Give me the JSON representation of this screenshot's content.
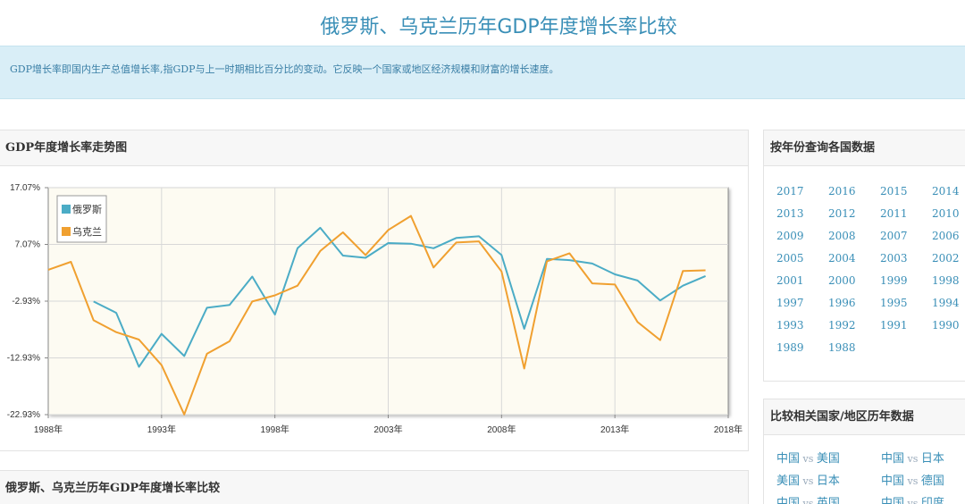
{
  "page": {
    "title": "俄罗斯、乌克兰历年GDP年度增长率比较",
    "description": "GDP增长率即国内生产总值增长率,指GDP与上一时期相比百分比的变动。它反映一个国家或地区经济规模和财富的增长速度。"
  },
  "chart_panel": {
    "title": "GDP年度增长率走势图"
  },
  "table_panel": {
    "title": "俄罗斯、乌克兰历年GDP年度增长率比较"
  },
  "year_panel": {
    "title": "按年份查询各国数据",
    "years": [
      "2017",
      "2016",
      "2015",
      "2014",
      "2013",
      "2012",
      "2011",
      "2010",
      "2009",
      "2008",
      "2007",
      "2006",
      "2005",
      "2004",
      "2003",
      "2002",
      "2001",
      "2000",
      "1999",
      "1998",
      "1997",
      "1996",
      "1995",
      "1994",
      "1993",
      "1992",
      "1991",
      "1990",
      "1989",
      "1988"
    ]
  },
  "compare_panel": {
    "title": "比较相关国家/地区历年数据",
    "vs": "vs",
    "pairs": [
      {
        "a": "中国",
        "b": "美国"
      },
      {
        "a": "中国",
        "b": "日本"
      },
      {
        "a": "美国",
        "b": "日本"
      },
      {
        "a": "中国",
        "b": "德国"
      },
      {
        "a": "中国",
        "b": "英国"
      },
      {
        "a": "中国",
        "b": "印度"
      }
    ]
  },
  "colors": {
    "russia": "#4bacc6",
    "ukraine": "#f0a030",
    "plot_bg": "#fdfbf2",
    "grid": "#d8d8d8"
  },
  "chart_data": {
    "type": "line",
    "y_ticks": [
      "17.07%",
      "7.07%",
      "-2.93%",
      "-12.93%",
      "-22.93%"
    ],
    "y_tick_values": [
      17.07,
      7.07,
      -2.93,
      -12.93,
      -22.93
    ],
    "ylim": [
      -22.93,
      17.07
    ],
    "x_ticks": [
      "1988年",
      "1993年",
      "1998年",
      "2003年",
      "2008年",
      "2013年",
      "2018年"
    ],
    "x_tick_values": [
      1988,
      1993,
      1998,
      2003,
      2008,
      2013,
      2018
    ],
    "xlim": [
      1988,
      2018
    ],
    "grid": true,
    "legend_position": "top-left",
    "series": [
      {
        "name": "俄罗斯",
        "color": "#4bacc6",
        "x": [
          1990,
          1991,
          1992,
          1993,
          1994,
          1995,
          1996,
          1997,
          1998,
          1999,
          2000,
          2001,
          2002,
          2003,
          2004,
          2005,
          2006,
          2007,
          2008,
          2009,
          2010,
          2011,
          2012,
          2013,
          2014,
          2015,
          2016,
          2017
        ],
        "values": [
          -3.0,
          -5.0,
          -14.5,
          -8.7,
          -12.6,
          -4.1,
          -3.6,
          1.4,
          -5.3,
          6.4,
          10.0,
          5.1,
          4.7,
          7.3,
          7.2,
          6.4,
          8.2,
          8.5,
          5.2,
          -7.8,
          4.5,
          4.3,
          3.7,
          1.8,
          0.7,
          -2.8,
          -0.2,
          1.5
        ]
      },
      {
        "name": "乌克兰",
        "color": "#f0a030",
        "x": [
          1988,
          1989,
          1990,
          1991,
          1992,
          1993,
          1994,
          1995,
          1996,
          1997,
          1998,
          1999,
          2000,
          2001,
          2002,
          2003,
          2004,
          2005,
          2006,
          2007,
          2008,
          2009,
          2010,
          2011,
          2012,
          2013,
          2014,
          2015,
          2016,
          2017
        ],
        "values": [
          2.6,
          4.0,
          -6.3,
          -8.4,
          -9.7,
          -14.2,
          -22.9,
          -12.2,
          -10.0,
          -3.0,
          -1.9,
          -0.2,
          5.9,
          9.2,
          5.2,
          9.6,
          12.1,
          3.0,
          7.4,
          7.6,
          2.3,
          -14.8,
          4.1,
          5.5,
          0.2,
          0.0,
          -6.6,
          -9.8,
          2.4,
          2.5
        ]
      }
    ]
  }
}
